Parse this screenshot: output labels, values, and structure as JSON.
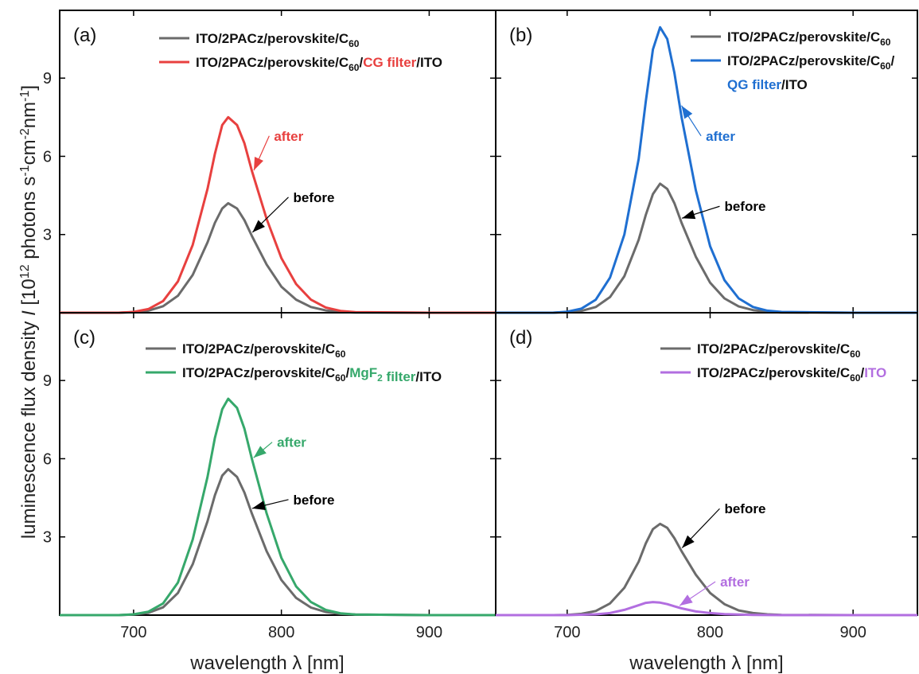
{
  "colors": {
    "before": "#6b6b6b",
    "axis": "#000000"
  },
  "x_axis_label": "wavelength λ [nm]",
  "y_axis_label": "luminescence  flux density I [10^12 photons s^-1cm^-2nm^-1]",
  "legend_base": "ITO/2PACz/perovskite/C60",
  "chart_data": [
    {
      "panel": "(a)",
      "type": "line",
      "xlim": [
        650,
        945
      ],
      "ylim": [
        0,
        11.6
      ],
      "xticks": [
        700,
        800,
        900
      ],
      "yticks": [
        3,
        6,
        9
      ],
      "after_color": "#e8403f",
      "legend": [
        "ITO/2PACz/perovskite/C60",
        "ITO/2PACz/perovskite/C60/CG filter/ITO"
      ],
      "series": [
        {
          "name": "ITO/2PACz/perovskite/C60",
          "x": [
            650,
            690,
            700,
            710,
            720,
            730,
            740,
            750,
            755,
            760,
            764,
            770,
            775,
            780,
            790,
            800,
            810,
            820,
            830,
            840,
            850,
            900,
            945
          ],
          "y": [
            0,
            0,
            0.02,
            0.08,
            0.25,
            0.65,
            1.45,
            2.7,
            3.45,
            4.0,
            4.2,
            4.0,
            3.55,
            2.95,
            1.85,
            1.0,
            0.5,
            0.22,
            0.09,
            0.03,
            0.01,
            0,
            0
          ]
        },
        {
          "name": "ITO/2PACz/perovskite/C60/CG filter/ITO",
          "x": [
            650,
            690,
            700,
            710,
            720,
            730,
            740,
            750,
            755,
            760,
            764,
            770,
            775,
            780,
            790,
            800,
            810,
            820,
            830,
            840,
            850,
            900,
            945
          ],
          "y": [
            0,
            0,
            0.03,
            0.14,
            0.45,
            1.2,
            2.6,
            4.75,
            6.1,
            7.2,
            7.5,
            7.2,
            6.5,
            5.45,
            3.6,
            2.1,
            1.1,
            0.5,
            0.2,
            0.07,
            0.02,
            0,
            0
          ]
        }
      ],
      "annotations": [
        {
          "text": "after",
          "color_key": "after",
          "x": 795,
          "y": 6.6
        },
        {
          "text": "before",
          "color_key": "before",
          "x": 808,
          "y": 4.25
        }
      ]
    },
    {
      "panel": "(b)",
      "type": "line",
      "xlim": [
        650,
        945
      ],
      "ylim": [
        0,
        11.6
      ],
      "xticks": [
        700,
        800,
        900
      ],
      "yticks": [
        3,
        6,
        9
      ],
      "after_color": "#1f6fd1",
      "legend": [
        "ITO/2PACz/perovskite/C60",
        "ITO/2PACz/perovskite/C60/",
        "QG filter/ITO"
      ],
      "series": [
        {
          "name": "ITO/2PACz/perovskite/C60",
          "x": [
            650,
            690,
            700,
            710,
            720,
            730,
            740,
            750,
            755,
            760,
            765,
            770,
            775,
            780,
            790,
            800,
            810,
            820,
            830,
            840,
            850,
            900,
            945
          ],
          "y": [
            0,
            0,
            0.02,
            0.07,
            0.22,
            0.6,
            1.4,
            2.8,
            3.75,
            4.55,
            4.95,
            4.75,
            4.2,
            3.45,
            2.15,
            1.15,
            0.55,
            0.24,
            0.1,
            0.04,
            0.01,
            0,
            0
          ]
        },
        {
          "name": "ITO/2PACz/perovskite/C60/QG filter/ITO",
          "x": [
            650,
            690,
            700,
            710,
            720,
            730,
            740,
            750,
            755,
            760,
            765,
            770,
            775,
            780,
            790,
            800,
            810,
            820,
            830,
            840,
            850,
            900,
            945
          ],
          "y": [
            0,
            0,
            0.04,
            0.16,
            0.5,
            1.35,
            3.0,
            5.9,
            8.1,
            10.1,
            10.95,
            10.5,
            9.2,
            7.5,
            4.7,
            2.55,
            1.25,
            0.55,
            0.22,
            0.08,
            0.03,
            0,
            0
          ]
        }
      ],
      "annotations": [
        {
          "text": "after",
          "color_key": "after",
          "x": 797,
          "y": 6.6
        },
        {
          "text": "before",
          "color_key": "before",
          "x": 810,
          "y": 3.9
        }
      ]
    },
    {
      "panel": "(c)",
      "type": "line",
      "xlim": [
        650,
        945
      ],
      "ylim": [
        0,
        11.6
      ],
      "xticks": [
        700,
        800,
        900
      ],
      "yticks": [
        3,
        6,
        9
      ],
      "after_color": "#36a86b",
      "legend": [
        "ITO/2PACz/perovskite/C60",
        "ITO/2PACz/perovskite/C60/MgF2 filter/ITO"
      ],
      "series": [
        {
          "name": "ITO/2PACz/perovskite/C60",
          "x": [
            650,
            690,
            700,
            710,
            720,
            730,
            740,
            750,
            755,
            760,
            764,
            770,
            775,
            780,
            790,
            800,
            810,
            820,
            830,
            840,
            850,
            900,
            945
          ],
          "y": [
            0,
            0,
            0.02,
            0.09,
            0.3,
            0.85,
            1.95,
            3.6,
            4.6,
            5.35,
            5.6,
            5.3,
            4.7,
            3.9,
            2.45,
            1.35,
            0.66,
            0.29,
            0.12,
            0.05,
            0.02,
            0,
            0
          ]
        },
        {
          "name": "ITO/2PACz/perovskite/C60/MgF2 filter/ITO",
          "x": [
            650,
            690,
            700,
            710,
            720,
            730,
            740,
            750,
            755,
            760,
            764,
            770,
            775,
            780,
            790,
            800,
            810,
            820,
            830,
            840,
            850,
            900,
            945
          ],
          "y": [
            0,
            0,
            0.03,
            0.13,
            0.45,
            1.25,
            2.9,
            5.3,
            6.8,
            7.9,
            8.3,
            7.95,
            7.15,
            6.0,
            3.9,
            2.2,
            1.1,
            0.5,
            0.2,
            0.07,
            0.02,
            0,
            0
          ]
        }
      ],
      "annotations": [
        {
          "text": "after",
          "color_key": "after",
          "x": 797,
          "y": 6.45
        },
        {
          "text": "before",
          "color_key": "before",
          "x": 808,
          "y": 4.25
        }
      ]
    },
    {
      "panel": "(d)",
      "type": "line",
      "xlim": [
        650,
        945
      ],
      "ylim": [
        0,
        11.6
      ],
      "xticks": [
        700,
        800,
        900
      ],
      "yticks": [
        3,
        6,
        9
      ],
      "after_color": "#b26ee0",
      "legend": [
        "ITO/2PACz/perovskite/C60",
        "ITO/2PACz/perovskite/C60/ITO"
      ],
      "series": [
        {
          "name": "ITO/2PACz/perovskite/C60",
          "x": [
            650,
            690,
            700,
            710,
            720,
            730,
            740,
            750,
            755,
            760,
            765,
            770,
            775,
            780,
            790,
            800,
            810,
            820,
            830,
            840,
            850,
            900,
            945
          ],
          "y": [
            0,
            0,
            0.01,
            0.05,
            0.16,
            0.45,
            1.05,
            2.05,
            2.75,
            3.3,
            3.5,
            3.35,
            2.95,
            2.45,
            1.55,
            0.85,
            0.42,
            0.18,
            0.08,
            0.03,
            0.01,
            0,
            0
          ]
        },
        {
          "name": "ITO/2PACz/perovskite/C60/ITO",
          "x": [
            650,
            700,
            720,
            730,
            740,
            750,
            755,
            760,
            765,
            770,
            775,
            780,
            790,
            800,
            810,
            820,
            830,
            850,
            900,
            945
          ],
          "y": [
            0,
            0,
            0.03,
            0.08,
            0.2,
            0.38,
            0.47,
            0.5,
            0.48,
            0.42,
            0.34,
            0.26,
            0.14,
            0.08,
            0.04,
            0.02,
            0.01,
            0,
            0,
            0
          ]
        }
      ],
      "annotations": [
        {
          "text": "before",
          "color_key": "before",
          "x": 810,
          "y": 3.9
        },
        {
          "text": "after",
          "color_key": "after",
          "x": 807,
          "y": 1.1
        }
      ]
    }
  ]
}
